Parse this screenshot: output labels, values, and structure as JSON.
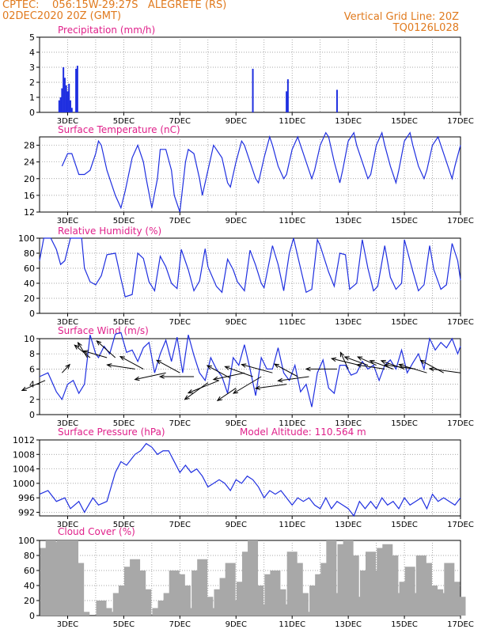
{
  "header": {
    "left_line1": "CPTEC:    056:15W-29:27S   ALEGRETE (RS)",
    "left_line2": "02DEC2020 20Z (GMT)",
    "right_line1": "Vertical Grid Line: 20Z",
    "right_line2": "TQ0126L028",
    "model_altitude": "Model Altitude: 110.564 m"
  },
  "colors": {
    "header": "#e07a1e",
    "title": "#e0208a",
    "series": "#1f2fe0",
    "cloud": "#a8a8a8",
    "grid": "#888888"
  },
  "x_axis": {
    "start_day": 2,
    "end_day": 17,
    "labels": [
      "3DEC",
      "5DEC",
      "7DEC",
      "9DEC",
      "11DEC",
      "13DEC",
      "15DEC",
      "17DEC"
    ]
  },
  "chart_data": [
    {
      "type": "bar",
      "title": "Precipitation (mm/h)",
      "ylim": [
        0,
        5
      ],
      "yticks": [
        0,
        1,
        2,
        3,
        4,
        5
      ],
      "x": [
        2.7,
        2.75,
        2.8,
        2.85,
        2.9,
        2.95,
        3.0,
        3.05,
        3.1,
        3.15,
        3.3,
        3.35,
        9.6,
        10.8,
        10.85,
        12.6
      ],
      "values": [
        0.8,
        1.0,
        1.6,
        3.0,
        2.3,
        1.8,
        1.4,
        1.9,
        0.8,
        0.3,
        2.9,
        3.1,
        2.9,
        1.4,
        2.2,
        1.5
      ]
    },
    {
      "type": "line",
      "title": "Surface Temperature (nC)",
      "ylim": [
        12,
        30
      ],
      "yticks": [
        12,
        16,
        20,
        24,
        28
      ],
      "x": [
        2.8,
        3.0,
        3.15,
        3.3,
        3.4,
        3.6,
        3.8,
        4.0,
        4.1,
        4.2,
        4.4,
        4.7,
        4.9,
        5.05,
        5.3,
        5.5,
        5.7,
        5.8,
        6.0,
        6.2,
        6.3,
        6.5,
        6.7,
        6.8,
        7.0,
        7.2,
        7.3,
        7.5,
        7.7,
        7.8,
        8.0,
        8.2,
        8.3,
        8.5,
        8.7,
        8.8,
        9.0,
        9.2,
        9.3,
        9.5,
        9.7,
        9.8,
        10.0,
        10.2,
        10.3,
        10.5,
        10.7,
        10.8,
        11.0,
        11.2,
        11.3,
        11.5,
        11.7,
        11.8,
        12.0,
        12.2,
        12.3,
        12.5,
        12.7,
        12.8,
        13.0,
        13.2,
        13.3,
        13.5,
        13.7,
        13.8,
        14.0,
        14.2,
        14.3,
        14.5,
        14.7,
        14.8,
        15.0,
        15.2,
        15.3,
        15.5,
        15.7,
        15.8,
        16.0,
        16.2,
        16.3,
        16.5,
        16.7,
        16.8,
        17.0
      ],
      "values": [
        23,
        26,
        26,
        23,
        21,
        21,
        22,
        26,
        29,
        28,
        22,
        16,
        13,
        17,
        25,
        28,
        24,
        20,
        13,
        20,
        27,
        27,
        22,
        16,
        12,
        24,
        27,
        26,
        20,
        16,
        22,
        28,
        27,
        25,
        19,
        18,
        24,
        29,
        28,
        24,
        20,
        19,
        25,
        30,
        28,
        23,
        20,
        21,
        27,
        30,
        28,
        24,
        20,
        22,
        28,
        31,
        30,
        24,
        19,
        22,
        29,
        31,
        28,
        24,
        20,
        21,
        28,
        31,
        28,
        23,
        19,
        22,
        29,
        31,
        28,
        23,
        20,
        22,
        28,
        30,
        28,
        24,
        20,
        23,
        28
      ]
    },
    {
      "type": "line",
      "title": "Relative Humidity (%)",
      "ylim": [
        0,
        100
      ],
      "yticks": [
        0,
        20,
        40,
        60,
        80,
        100
      ],
      "x": [
        2.0,
        2.15,
        2.4,
        2.6,
        2.75,
        2.9,
        3.1,
        3.3,
        3.5,
        3.6,
        3.8,
        4.0,
        4.2,
        4.4,
        4.7,
        4.9,
        5.05,
        5.3,
        5.5,
        5.7,
        5.9,
        6.1,
        6.3,
        6.5,
        6.7,
        6.9,
        7.05,
        7.3,
        7.5,
        7.7,
        7.9,
        8.0,
        8.3,
        8.5,
        8.7,
        8.9,
        9.05,
        9.3,
        9.5,
        9.7,
        9.9,
        10.0,
        10.3,
        10.5,
        10.7,
        10.9,
        11.05,
        11.3,
        11.5,
        11.7,
        11.9,
        12.0,
        12.3,
        12.5,
        12.7,
        12.9,
        13.05,
        13.3,
        13.5,
        13.7,
        13.9,
        14.05,
        14.3,
        14.5,
        14.7,
        14.9,
        15.0,
        15.3,
        15.5,
        15.7,
        15.9,
        16.05,
        16.3,
        16.5,
        16.7,
        16.9,
        17.0
      ],
      "values": [
        70,
        100,
        100,
        85,
        65,
        70,
        100,
        100,
        100,
        60,
        42,
        38,
        50,
        78,
        80,
        46,
        22,
        25,
        80,
        73,
        42,
        30,
        76,
        62,
        40,
        33,
        85,
        58,
        30,
        43,
        86,
        62,
        36,
        28,
        72,
        58,
        42,
        30,
        84,
        64,
        40,
        34,
        90,
        65,
        30,
        80,
        100,
        60,
        28,
        32,
        98,
        90,
        55,
        36,
        80,
        78,
        32,
        40,
        98,
        60,
        30,
        36,
        90,
        48,
        32,
        40,
        98,
        56,
        30,
        38,
        90,
        58,
        32,
        38,
        93,
        70,
        44
      ]
    },
    {
      "type": "line",
      "title": "Surface Wind (m/s)",
      "ylim": [
        0,
        10
      ],
      "yticks": [
        0,
        2,
        4,
        6,
        8,
        10
      ],
      "x": [
        2.0,
        2.3,
        2.6,
        2.8,
        3.0,
        3.2,
        3.4,
        3.6,
        3.8,
        4.0,
        4.1,
        4.3,
        4.5,
        4.7,
        4.9,
        5.1,
        5.3,
        5.5,
        5.7,
        5.9,
        6.1,
        6.3,
        6.5,
        6.7,
        6.9,
        7.1,
        7.3,
        7.5,
        7.7,
        7.9,
        8.1,
        8.3,
        8.5,
        8.7,
        8.9,
        9.1,
        9.3,
        9.5,
        9.7,
        9.9,
        10.1,
        10.3,
        10.5,
        10.7,
        10.9,
        11.1,
        11.3,
        11.5,
        11.7,
        11.9,
        12.1,
        12.3,
        12.5,
        12.7,
        12.9,
        13.1,
        13.3,
        13.5,
        13.7,
        13.9,
        14.1,
        14.3,
        14.5,
        14.7,
        14.9,
        15.1,
        15.3,
        15.5,
        15.7,
        15.9,
        16.1,
        16.3,
        16.5,
        16.7,
        16.9,
        17.0
      ],
      "values": [
        5,
        5.5,
        3,
        2,
        4,
        4.5,
        2.8,
        4,
        10.5,
        8,
        7.5,
        9,
        8,
        10.6,
        10.8,
        8.2,
        8.5,
        7,
        8.8,
        9.5,
        5.5,
        8,
        9.8,
        7,
        10.2,
        5.5,
        10.5,
        7.8,
        5.5,
        4.5,
        7.5,
        6,
        5,
        2.8,
        7.5,
        6.5,
        9.2,
        6,
        2.5,
        7.5,
        6,
        6,
        8.8,
        5.5,
        4.5,
        6.5,
        3,
        4,
        1,
        5.5,
        7.2,
        3.5,
        2.8,
        6.5,
        6.5,
        5.2,
        5.5,
        7,
        6,
        6.5,
        4.5,
        6.5,
        7.2,
        6,
        8.5,
        5.5,
        6.8,
        8,
        6,
        10,
        8.5,
        9.5,
        8.8,
        10,
        8,
        9
      ]
    },
    {
      "type": "line",
      "title": "Surface Pressure (hPa)",
      "ylim": [
        991,
        1012
      ],
      "yticks": [
        992,
        996,
        1000,
        1004,
        1008,
        1012
      ],
      "x": [
        2.0,
        2.3,
        2.6,
        2.9,
        3.1,
        3.4,
        3.6,
        3.9,
        4.1,
        4.4,
        4.7,
        4.9,
        5.1,
        5.4,
        5.6,
        5.8,
        6.0,
        6.2,
        6.4,
        6.6,
        6.8,
        7.0,
        7.2,
        7.4,
        7.6,
        7.8,
        8.0,
        8.2,
        8.4,
        8.6,
        8.8,
        9.0,
        9.2,
        9.4,
        9.6,
        9.8,
        10.0,
        10.2,
        10.4,
        10.6,
        10.8,
        11.0,
        11.2,
        11.4,
        11.6,
        11.8,
        12.0,
        12.2,
        12.4,
        12.6,
        12.8,
        13.0,
        13.2,
        13.4,
        13.6,
        13.8,
        14.0,
        14.2,
        14.4,
        14.6,
        14.8,
        15.0,
        15.2,
        15.4,
        15.6,
        15.8,
        16.0,
        16.2,
        16.4,
        16.6,
        16.8,
        17.0
      ],
      "values": [
        997,
        998,
        995,
        996,
        993,
        995,
        992,
        996,
        994,
        995,
        1003,
        1006,
        1005,
        1008,
        1009,
        1011,
        1010,
        1008,
        1009,
        1009,
        1006,
        1003,
        1005,
        1003,
        1004,
        1002,
        999,
        1000,
        1001,
        1000,
        998,
        1001,
        1000,
        1002,
        1001,
        999,
        996,
        998,
        997,
        998,
        996,
        994,
        996,
        995,
        996,
        994,
        993,
        996,
        993,
        995,
        994,
        993,
        991,
        995,
        993,
        995,
        993,
        996,
        994,
        995,
        993,
        996,
        994,
        995,
        996,
        993,
        997,
        995,
        996,
        995,
        994,
        996
      ]
    },
    {
      "type": "bar",
      "title": "Cloud Cover (%)",
      "ylim": [
        0,
        100
      ],
      "yticks": [
        0,
        20,
        40,
        60,
        80,
        100
      ],
      "x": [
        2.2,
        2.4,
        2.6,
        2.8,
        3.0,
        3.2,
        3.4,
        3.6,
        3.8,
        4.0,
        4.2,
        4.4,
        4.6,
        4.8,
        5.0,
        5.2,
        5.4,
        5.6,
        5.8,
        6.0,
        6.2,
        6.4,
        6.6,
        6.8,
        7.0,
        7.2,
        7.4,
        7.6,
        7.8,
        8.0,
        8.2,
        8.4,
        8.6,
        8.8,
        9.0,
        9.2,
        9.4,
        9.6,
        9.8,
        10.0,
        10.2,
        10.4,
        10.6,
        10.8,
        11.0,
        11.2,
        11.4,
        11.6,
        11.8,
        12.0,
        12.2,
        12.4,
        12.6,
        12.8,
        13.0,
        13.2,
        13.4,
        13.6,
        13.8,
        14.0,
        14.2,
        14.4,
        14.6,
        14.8,
        15.0,
        15.2,
        15.4,
        15.6,
        15.8,
        16.0,
        16.2,
        16.4,
        16.6,
        16.8,
        17.0
      ],
      "values": [
        90,
        100,
        98,
        100,
        100,
        100,
        70,
        5,
        0,
        0,
        20,
        10,
        5,
        30,
        40,
        65,
        75,
        60,
        35,
        0,
        10,
        20,
        30,
        60,
        55,
        40,
        10,
        60,
        75,
        25,
        10,
        35,
        50,
        70,
        20,
        45,
        85,
        100,
        40,
        15,
        55,
        60,
        35,
        15,
        85,
        70,
        30,
        5,
        40,
        55,
        70,
        100,
        30,
        95,
        100,
        80,
        25,
        60,
        85,
        60,
        90,
        95,
        80,
        30,
        45,
        65,
        30,
        80,
        70,
        40,
        35,
        30,
        70,
        45,
        25
      ]
    },
    {
      "type": "scatter",
      "title": "Surface Wind direction arrows",
      "note": "vectors from wind barbs",
      "x": [
        2.2,
        2.8,
        3.7,
        3.8,
        4.4,
        4.7,
        5.4,
        5.7,
        6.5,
        7.0,
        7.5,
        8.0,
        8.4,
        8.8,
        9.0,
        9.3,
        9.6,
        9.9,
        10.3,
        10.8,
        11.2,
        11.6,
        12.6,
        13.0,
        13.4,
        13.7,
        14.0,
        14.3,
        14.6,
        15.0,
        15.4,
        15.8,
        16.4,
        17.0
      ],
      "values": [
        0,
        0,
        0,
        0,
        0,
        0,
        0,
        0,
        0,
        0,
        0,
        0,
        0,
        0,
        0,
        0,
        0,
        0,
        0,
        0,
        0,
        0,
        0,
        0,
        0,
        0,
        0,
        0,
        0,
        0,
        0,
        0,
        0,
        0
      ]
    }
  ]
}
